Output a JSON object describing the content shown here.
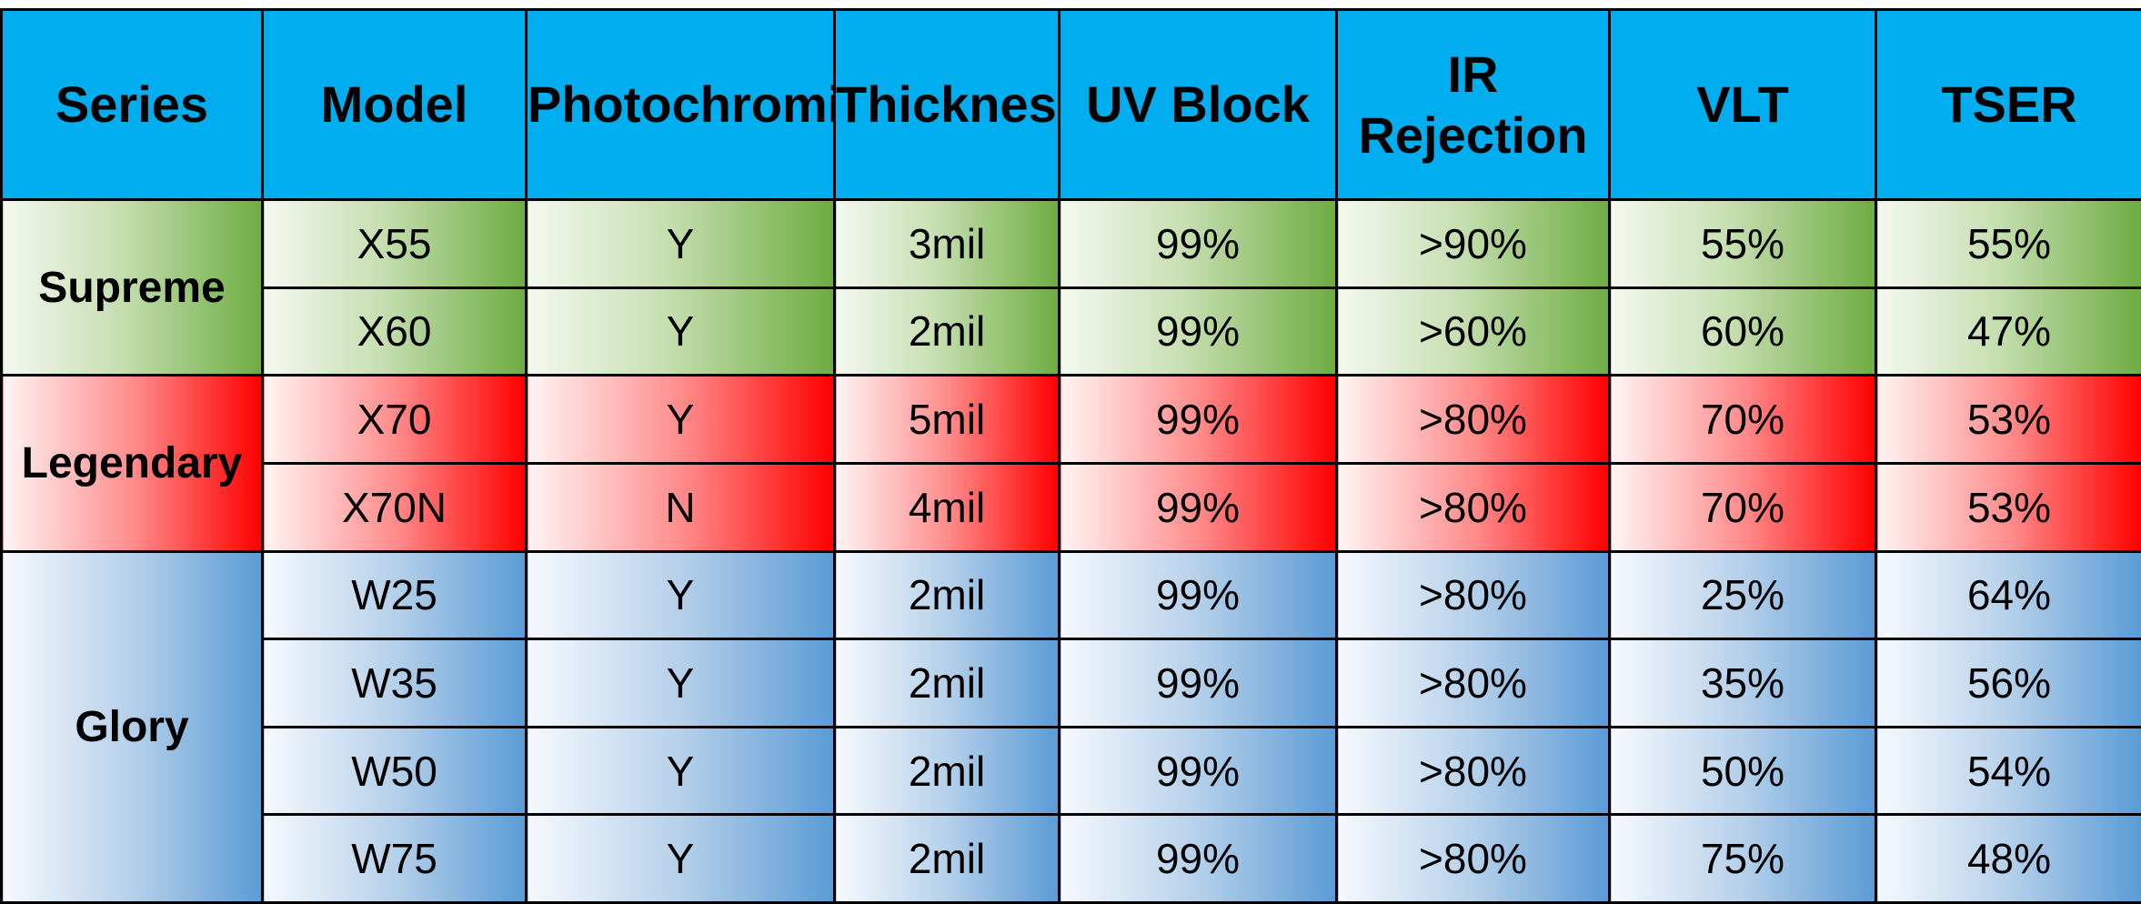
{
  "table": {
    "headers": [
      "Series",
      "Model",
      "Photochromic",
      "Thickness",
      "UV Block",
      "IR Rejection",
      "VLT",
      "TSER"
    ],
    "groups": [
      {
        "series": "Supreme",
        "gradient": "green",
        "colors": [
          "#f4f8ef",
          "#c6dfb1",
          "#6eac42"
        ],
        "rows": [
          [
            "X55",
            "Y",
            "3mil",
            "99%",
            ">90%",
            "55%",
            "55%"
          ],
          [
            "X60",
            "Y",
            "2mil",
            "99%",
            ">60%",
            "60%",
            "47%"
          ]
        ]
      },
      {
        "series": "Legendary",
        "gradient": "red",
        "colors": [
          "#fff4f4",
          "#ff8c8c",
          "#ff0000"
        ],
        "rows": [
          [
            "X70",
            "Y",
            "5mil",
            "99%",
            ">80%",
            "70%",
            "53%"
          ],
          [
            "X70N",
            "N",
            "4mil",
            "99%",
            ">80%",
            "70%",
            "53%"
          ]
        ]
      },
      {
        "series": "Glory",
        "gradient": "blue",
        "colors": [
          "#f6f9fd",
          "#b5d0ea",
          "#5b9bd5"
        ],
        "rows": [
          [
            "W25",
            "Y",
            "2mil",
            "99%",
            ">80%",
            "25%",
            "64%"
          ],
          [
            "W35",
            "Y",
            "2mil",
            "99%",
            ">80%",
            "35%",
            "56%"
          ],
          [
            "W50",
            "Y",
            "2mil",
            "99%",
            ">80%",
            "50%",
            "54%"
          ],
          [
            "W75",
            "Y",
            "2mil",
            "99%",
            ">80%",
            "75%",
            "48%"
          ]
        ]
      }
    ]
  },
  "colors": {
    "header_background": "#00aeef",
    "border": "#000000",
    "text": "#000000"
  }
}
